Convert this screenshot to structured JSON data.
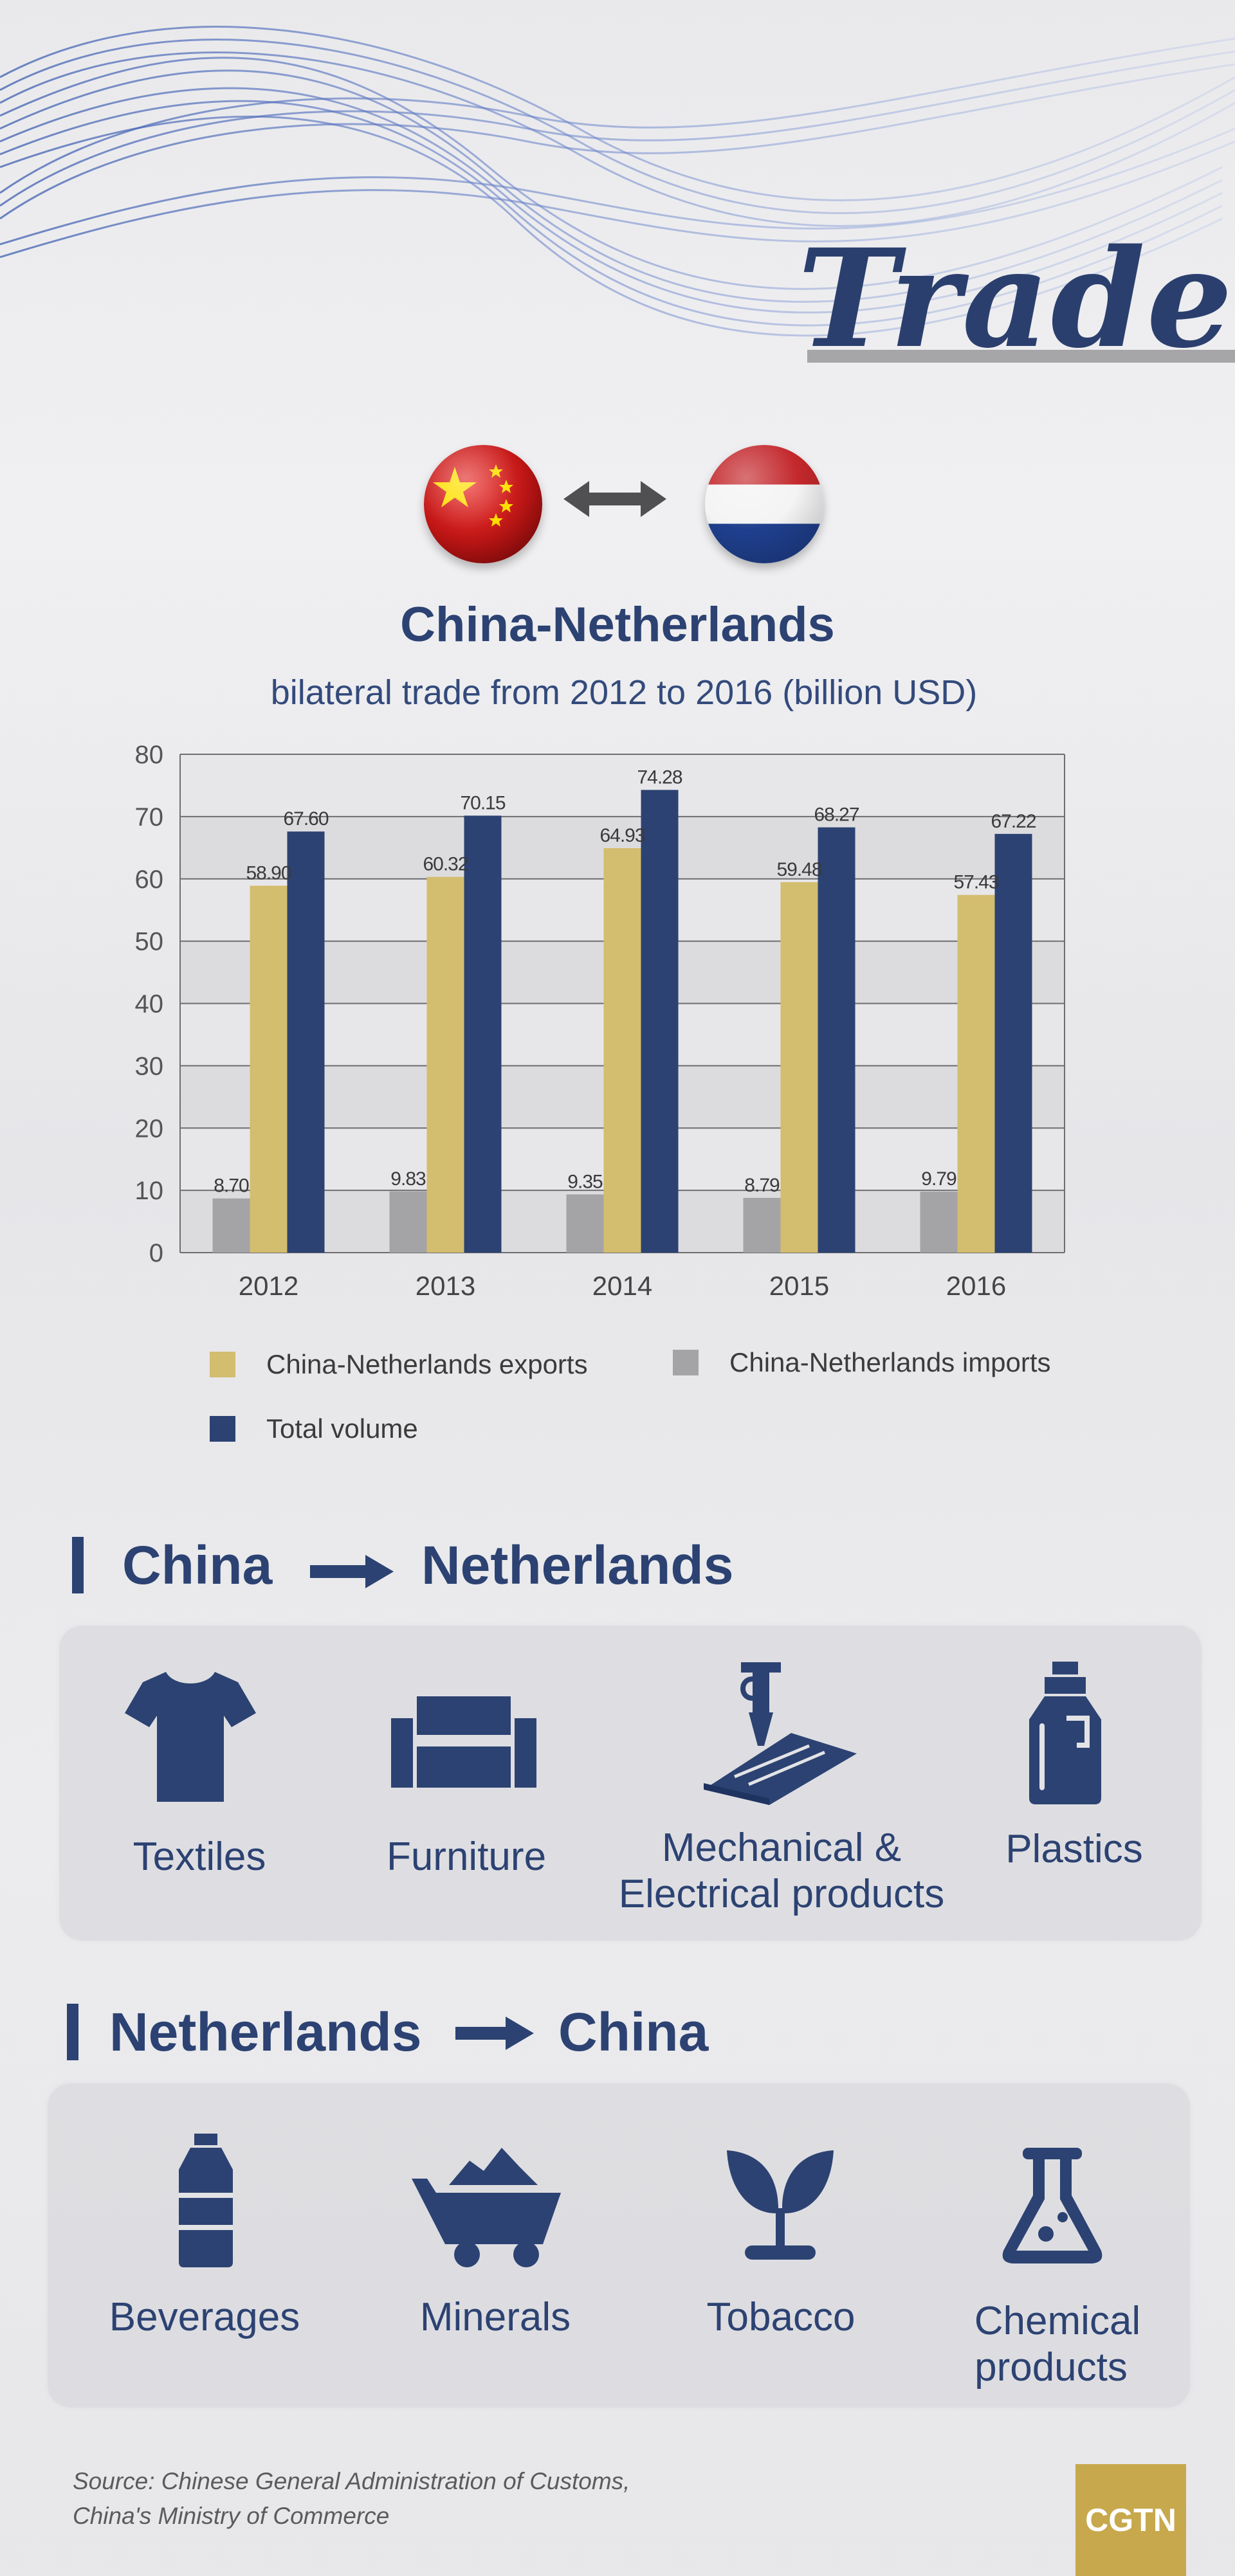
{
  "header": {
    "title": "Trade"
  },
  "chart_title": "China-Netherlands",
  "chart_subtitle": "bilateral trade from 2012 to 2016 (billion USD)",
  "chart_data": {
    "type": "bar",
    "categories": [
      "2012",
      "2013",
      "2014",
      "2015",
      "2016"
    ],
    "series": [
      {
        "name": "China-Netherlands imports",
        "color": "#a4a4a6",
        "values": [
          8.7,
          9.83,
          9.35,
          8.79,
          9.79
        ],
        "labels": [
          "8.70",
          "9.83",
          "9.35",
          "8.79",
          "9.79"
        ]
      },
      {
        "name": "China-Netherlands exports",
        "color": "#d3bd6e",
        "values": [
          58.9,
          60.32,
          64.93,
          59.48,
          57.43
        ],
        "labels": [
          "58.90",
          "60.32",
          "64.93",
          "59.48",
          "57.43"
        ]
      },
      {
        "name": "Total volume",
        "color": "#2c4272",
        "values": [
          67.6,
          70.15,
          74.28,
          68.27,
          67.22
        ],
        "labels": [
          "67.60",
          "70.15",
          "74.28",
          "68.27",
          "67.22"
        ]
      }
    ],
    "ylim": [
      0,
      80
    ],
    "yticks": [
      "0",
      "10",
      "20",
      "30",
      "40",
      "50",
      "60",
      "70",
      "80"
    ],
    "grid": true,
    "legend_position": "bottom"
  },
  "legend": {
    "exports": "China-Netherlands exports",
    "imports": "China-Netherlands imports",
    "total": "Total volume"
  },
  "section_cn_nl": {
    "from": "China",
    "to": "Netherlands",
    "items": [
      {
        "label": "Textiles",
        "icon": "tshirt-icon"
      },
      {
        "label": "Furniture",
        "icon": "sofa-icon"
      },
      {
        "label_line1": "Mechanical &",
        "label_line2": "Electrical products",
        "icon": "machine-tool-icon"
      },
      {
        "label": "Plastics",
        "icon": "plastic-bottle-icon"
      }
    ]
  },
  "section_nl_cn": {
    "from": "Netherlands",
    "to": "China",
    "items": [
      {
        "label": "Beverages",
        "icon": "beverage-bottle-icon"
      },
      {
        "label": "Minerals",
        "icon": "mine-cart-icon"
      },
      {
        "label": "Tobacco",
        "icon": "sprout-icon"
      },
      {
        "label_line1": "Chemical",
        "label_line2": "products",
        "icon": "flask-icon"
      }
    ]
  },
  "source_line1": "Source:  Chinese General Administration of Customs,",
  "source_line2": "China's Ministry of Commerce",
  "logo": "CGTN",
  "colors": {
    "navy": "#2c4272",
    "gold": "#d3bd6e",
    "gray": "#a4a4a6",
    "logo_gold": "#c7a84c"
  }
}
